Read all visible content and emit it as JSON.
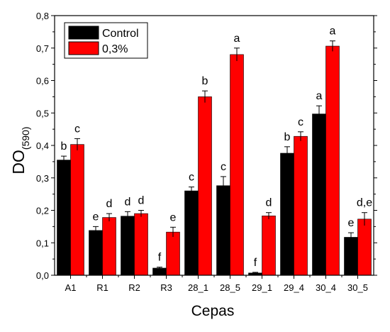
{
  "chart_data": {
    "type": "bar",
    "categories": [
      "A1",
      "R1",
      "R2",
      "R3",
      "28_1",
      "28_5",
      "29_1",
      "29_4",
      "30_4",
      "30_5"
    ],
    "series": [
      {
        "name": "Control",
        "color": "#000000",
        "values": [
          0.355,
          0.138,
          0.182,
          0.022,
          0.26,
          0.276,
          0.007,
          0.376,
          0.497,
          0.117
        ],
        "errors": [
          0.012,
          0.012,
          0.014,
          0.003,
          0.012,
          0.028,
          0.002,
          0.02,
          0.025,
          0.014
        ],
        "sig_labels": [
          "b",
          "e",
          "d",
          "f",
          "c",
          "c",
          "f",
          "b",
          "a",
          "e"
        ]
      },
      {
        "name": "0,3%",
        "color": "#ff0000",
        "values": [
          0.403,
          0.178,
          0.19,
          0.133,
          0.55,
          0.68,
          0.183,
          0.428,
          0.706,
          0.173
        ],
        "errors": [
          0.018,
          0.012,
          0.01,
          0.015,
          0.018,
          0.02,
          0.01,
          0.014,
          0.016,
          0.02
        ],
        "sig_labels": [
          "c",
          "d",
          "d",
          "e",
          "b",
          "a",
          "d",
          "c",
          "a",
          "d,e"
        ]
      }
    ],
    "xlabel": "Cepas",
    "ylabel": "DO",
    "ylabel_subscript": "(590)",
    "ylim": [
      0,
      0.8
    ],
    "yticks": [
      "0,0",
      "0,1",
      "0,2",
      "0,3",
      "0,4",
      "0,5",
      "0,6",
      "0,7",
      "0,8"
    ],
    "legend_position": "top-left",
    "grid": false
  }
}
